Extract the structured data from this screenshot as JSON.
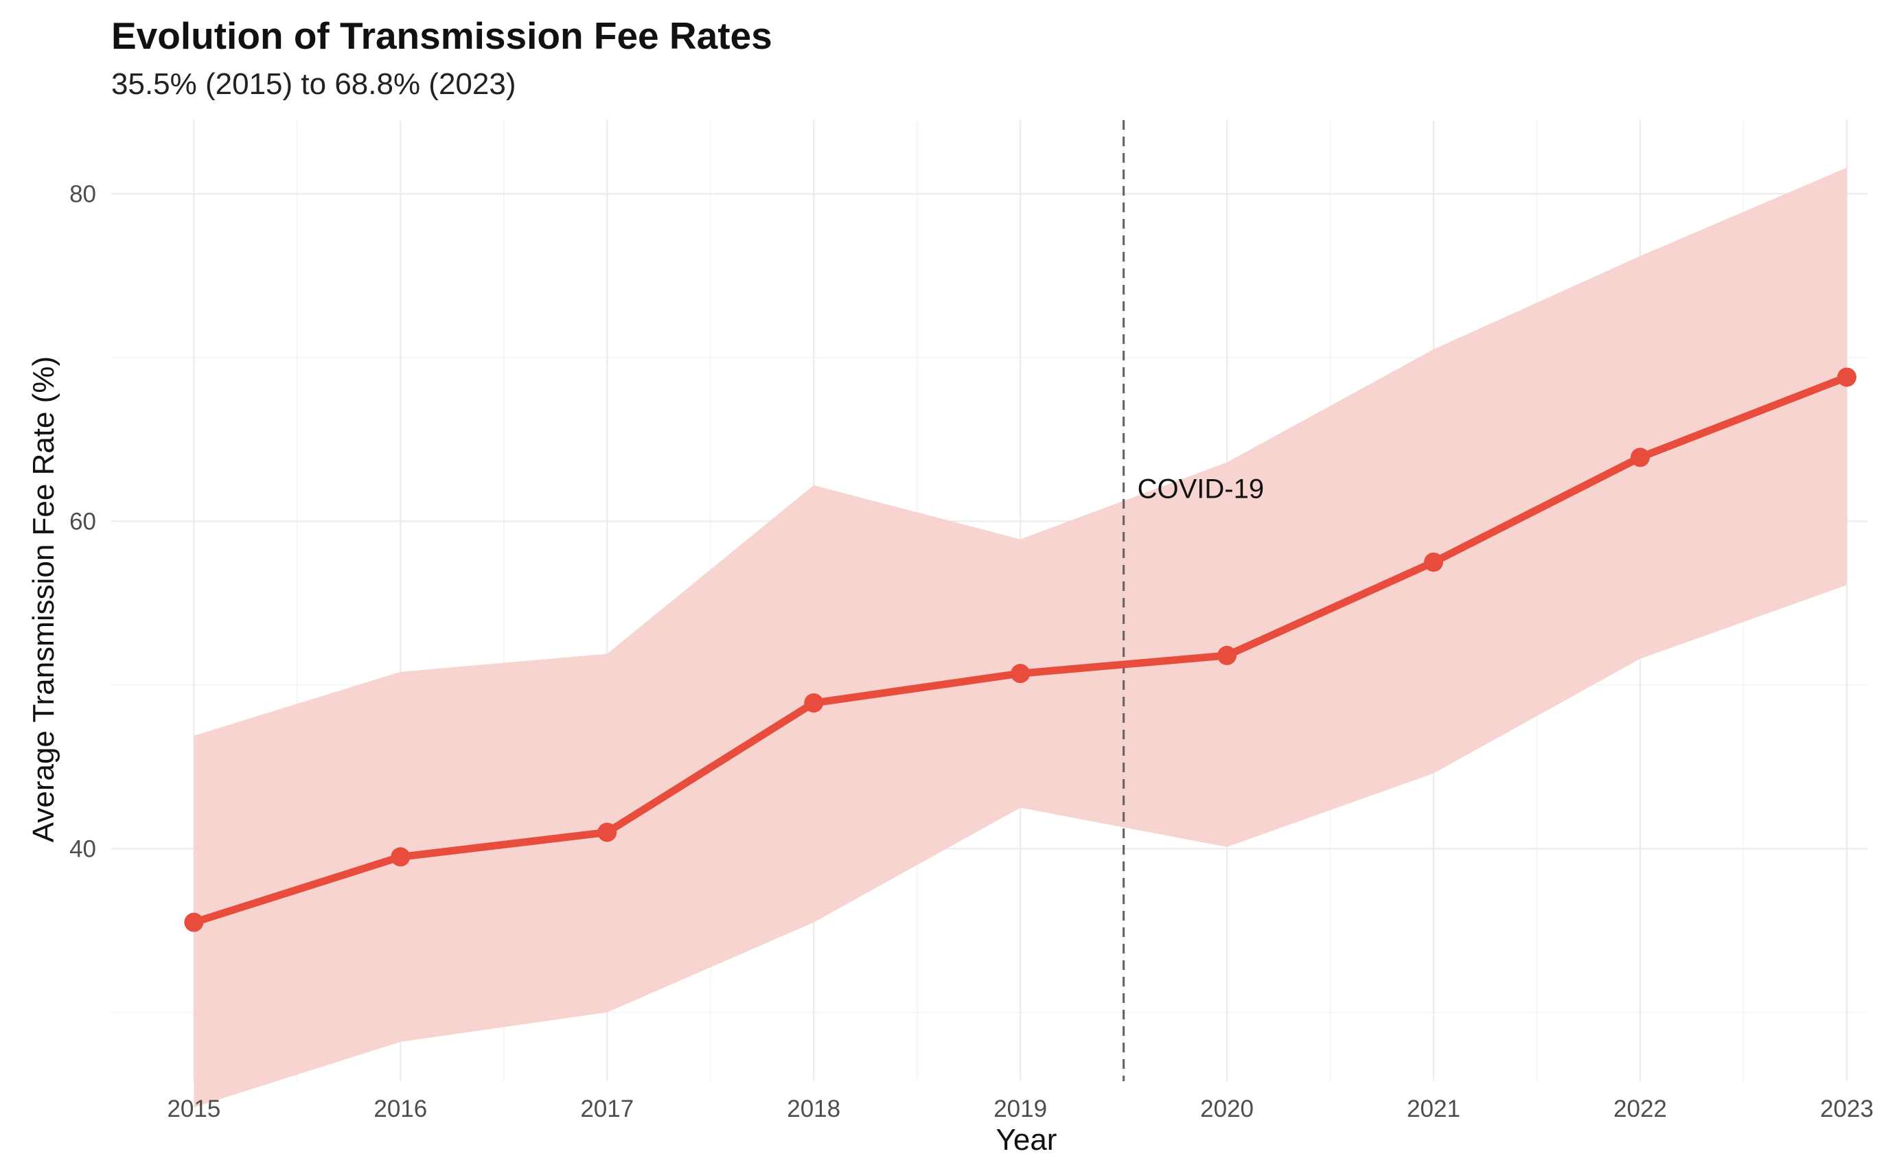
{
  "chart_data": {
    "type": "line",
    "title": "Evolution of Transmission Fee Rates",
    "subtitle": "35.5% (2015) to 68.8% (2023)",
    "xlabel": "Year",
    "ylabel": "Average Transmission Fee Rate (%)",
    "x": [
      2015,
      2016,
      2017,
      2018,
      2019,
      2020,
      2021,
      2022,
      2023
    ],
    "x_tick_labels": [
      "2015",
      "2016",
      "2017",
      "2018",
      "2019",
      "2020",
      "2021",
      "2022",
      "2023"
    ],
    "y_ticks": [
      40,
      60,
      80
    ],
    "y_tick_labels": [
      "40",
      "60",
      "80"
    ],
    "xlim": [
      2014.6,
      2023.1
    ],
    "ylim": [
      25.8,
      84.5
    ],
    "grid": true,
    "series": [
      {
        "name": "Average Transmission Fee Rate",
        "color": "#e84c3d",
        "values": [
          35.5,
          39.5,
          41.0,
          48.9,
          50.7,
          51.8,
          57.5,
          63.9,
          68.8
        ],
        "lower": [
          24.2,
          28.2,
          30.0,
          35.5,
          42.5,
          40.1,
          44.6,
          51.6,
          56.1
        ],
        "upper": [
          46.9,
          50.8,
          51.9,
          62.2,
          58.9,
          63.6,
          70.5,
          76.2,
          81.6
        ],
        "band_color": "#f8d4d1"
      }
    ],
    "annotations": [
      {
        "type": "vline",
        "x": 2019.5,
        "label": "COVID-19",
        "label_y": 62.0,
        "color": "#666666"
      }
    ]
  }
}
